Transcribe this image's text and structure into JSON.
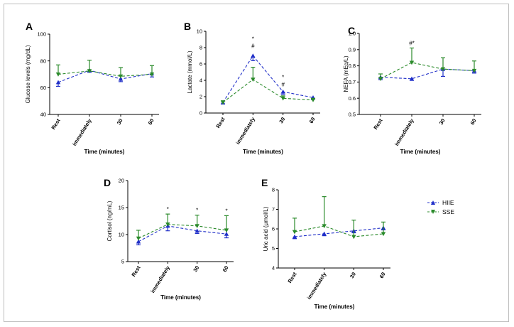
{
  "colors": {
    "hiie": "#1f2ec8",
    "sse": "#2a8a2a"
  },
  "legend": {
    "position": "right",
    "entries": [
      "HIIE",
      "SSE"
    ]
  },
  "chart_data": [
    {
      "id": "A",
      "panel": "A",
      "type": "line",
      "categories": [
        "Rest",
        "immediately",
        "30",
        "60"
      ],
      "xlabel": "Time (minutes)",
      "ylabel": "Glucose levels (mg/dL)",
      "ylim": [
        40,
        100
      ],
      "yticks": [
        40,
        60,
        80,
        100
      ],
      "series": [
        {
          "name": "HIIE",
          "values": [
            64,
            73,
            66.5,
            70.5
          ],
          "err": [
            3,
            1.5,
            2,
            2.5
          ]
        },
        {
          "name": "SSE",
          "values": [
            70,
            72.5,
            68.5,
            70
          ],
          "err": [
            7,
            8,
            6.5,
            6.5
          ]
        }
      ],
      "annotations": []
    },
    {
      "id": "B",
      "panel": "B",
      "type": "line",
      "categories": [
        "Rest",
        "immediately",
        "30",
        "60"
      ],
      "xlabel": "Time (minutes)",
      "ylabel": "Lactate (mmol/L)",
      "ylim": [
        0,
        10
      ],
      "yticks": [
        0,
        2,
        4,
        6,
        8,
        10
      ],
      "series": [
        {
          "name": "HIIE",
          "values": [
            1.3,
            7.0,
            2.6,
            1.9
          ],
          "err": [
            0.2,
            0.6,
            0.3,
            0.2
          ]
        },
        {
          "name": "SSE",
          "values": [
            1.3,
            4.1,
            1.8,
            1.6
          ],
          "err": [
            0.2,
            1.5,
            0.3,
            0.2
          ]
        }
      ],
      "annotations": [
        {
          "category": "immediately",
          "lines": [
            "*",
            "#"
          ]
        },
        {
          "category": "30",
          "lines": [
            "*",
            "#"
          ]
        }
      ]
    },
    {
      "id": "C",
      "panel": "C",
      "type": "line",
      "categories": [
        "Rest",
        "immediately",
        "30",
        "60"
      ],
      "xlabel": "Time (minutes)",
      "ylabel": "NEFA (mEq/L)",
      "ylim": [
        0.5,
        1.0
      ],
      "yticks": [
        0.5,
        0.6,
        0.7,
        0.8,
        0.9,
        1.0
      ],
      "series": [
        {
          "name": "HIIE",
          "values": [
            0.73,
            0.72,
            0.78,
            0.77
          ],
          "err": [
            0.015,
            0.01,
            0.045,
            0.015
          ]
        },
        {
          "name": "SSE",
          "values": [
            0.72,
            0.82,
            0.78,
            0.77
          ],
          "err": [
            0.03,
            0.09,
            0.07,
            0.06
          ]
        }
      ],
      "annotations": [
        {
          "category": "immediately",
          "lines": [
            "#*"
          ]
        }
      ]
    },
    {
      "id": "D",
      "panel": "D",
      "type": "line",
      "categories": [
        "Rest",
        "immediately",
        "30",
        "60"
      ],
      "xlabel": "Time (minutes)",
      "ylabel": "Cortisol (ng/mL)",
      "ylim": [
        5,
        20
      ],
      "yticks": [
        5,
        10,
        15,
        20
      ],
      "series": [
        {
          "name": "HIIE",
          "values": [
            8.7,
            11.6,
            10.7,
            10.1
          ],
          "err": [
            0.6,
            0.9,
            0.5,
            0.7
          ]
        },
        {
          "name": "SSE",
          "values": [
            9.3,
            11.9,
            11.6,
            10.8
          ],
          "err": [
            1.5,
            1.9,
            2.0,
            2.7
          ]
        }
      ],
      "annotations": [
        {
          "category": "immediately",
          "lines": [
            "*"
          ]
        },
        {
          "category": "30",
          "lines": [
            "*"
          ]
        },
        {
          "category": "60",
          "lines": [
            "*"
          ]
        }
      ]
    },
    {
      "id": "E",
      "panel": "E",
      "type": "line",
      "categories": [
        "Rest",
        "immediately",
        "30",
        "60"
      ],
      "xlabel": "Time (minutes)",
      "ylabel": "Uric acid (μmol/L)",
      "ylim": [
        4,
        8
      ],
      "yticks": [
        4,
        5,
        6,
        7,
        8
      ],
      "series": [
        {
          "name": "HIIE",
          "values": [
            5.6,
            5.75,
            5.9,
            6.05
          ],
          "err": [
            0.1,
            0.1,
            0.1,
            0.1
          ]
        },
        {
          "name": "SSE",
          "values": [
            5.85,
            6.15,
            5.6,
            5.75
          ],
          "err": [
            0.7,
            1.5,
            0.85,
            0.6
          ]
        }
      ],
      "annotations": []
    }
  ]
}
